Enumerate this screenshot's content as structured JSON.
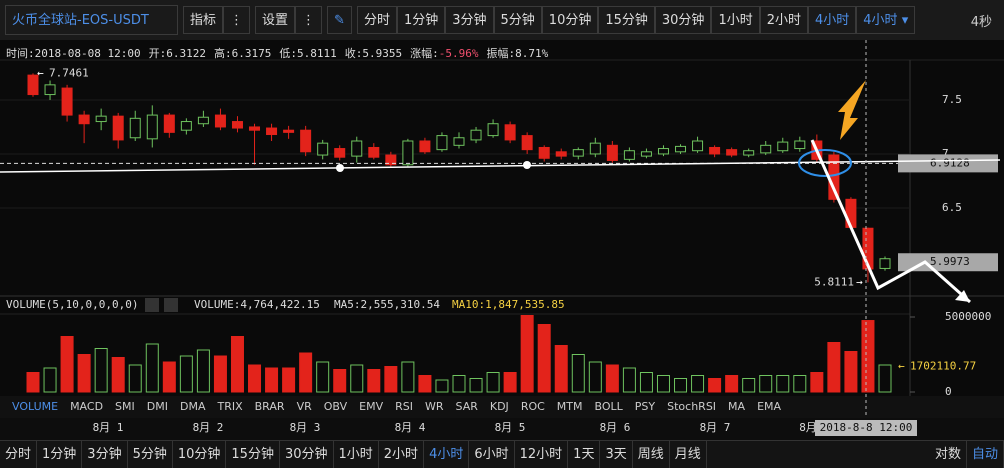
{
  "toolbar": {
    "symbol": "火币全球站-EOS-USDT",
    "indicator": "指标",
    "settings": "设置",
    "intervals": [
      "分时",
      "1分钟",
      "3分钟",
      "5分钟",
      "10分钟",
      "15分钟",
      "30分钟",
      "1小时",
      "2小时",
      "4小时"
    ],
    "interval_select": "4小时",
    "refresh": "4秒"
  },
  "info_bar": {
    "time_label": "时间:",
    "time": "2018-08-08 12:00",
    "open_label": "开:",
    "high_label": "高:",
    "low_label": "低:",
    "close_label": "收:",
    "change_label": "涨幅:",
    "change": "-5.96%",
    "amplitude_label": "振幅:",
    "amplitude": "8.71%"
  },
  "chart_data": {
    "type": "candlestick",
    "candles": [
      [
        7.73,
        7.7461,
        7.53,
        7.55
      ],
      [
        7.55,
        7.68,
        7.5,
        7.64
      ],
      [
        7.61,
        7.64,
        7.3,
        7.36
      ],
      [
        7.36,
        7.4,
        7.1,
        7.28
      ],
      [
        7.3,
        7.42,
        7.22,
        7.35
      ],
      [
        7.35,
        7.38,
        7.05,
        7.13
      ],
      [
        7.15,
        7.4,
        7.12,
        7.33
      ],
      [
        7.14,
        7.45,
        7.06,
        7.36
      ],
      [
        7.36,
        7.38,
        7.15,
        7.2
      ],
      [
        7.22,
        7.33,
        7.18,
        7.3
      ],
      [
        7.28,
        7.4,
        7.25,
        7.34
      ],
      [
        7.36,
        7.42,
        7.22,
        7.25
      ],
      [
        7.3,
        7.35,
        7.2,
        7.24
      ],
      [
        7.25,
        7.28,
        6.9,
        7.22
      ],
      [
        7.24,
        7.28,
        7.12,
        7.18
      ],
      [
        7.22,
        7.26,
        7.14,
        7.2
      ],
      [
        7.22,
        7.26,
        6.98,
        7.02
      ],
      [
        6.99,
        7.13,
        6.95,
        7.1
      ],
      [
        7.05,
        7.08,
        6.94,
        6.97
      ],
      [
        6.98,
        7.16,
        6.92,
        7.12
      ],
      [
        7.06,
        7.1,
        6.95,
        6.97
      ],
      [
        6.99,
        7.02,
        6.88,
        6.9
      ],
      [
        6.9,
        7.14,
        6.88,
        7.12
      ],
      [
        7.12,
        7.15,
        7.0,
        7.02
      ],
      [
        7.04,
        7.2,
        7.02,
        7.17
      ],
      [
        7.08,
        7.2,
        7.05,
        7.15
      ],
      [
        7.13,
        7.25,
        7.1,
        7.22
      ],
      [
        7.17,
        7.32,
        7.15,
        7.28
      ],
      [
        7.27,
        7.3,
        7.1,
        7.13
      ],
      [
        7.17,
        7.2,
        7.0,
        7.04
      ],
      [
        7.06,
        7.08,
        6.93,
        6.96
      ],
      [
        7.02,
        7.05,
        6.95,
        6.98
      ],
      [
        6.98,
        7.06,
        6.95,
        7.04
      ],
      [
        7.0,
        7.15,
        6.97,
        7.1
      ],
      [
        7.08,
        7.12,
        6.92,
        6.94
      ],
      [
        6.95,
        7.06,
        6.93,
        7.03
      ],
      [
        6.98,
        7.05,
        6.96,
        7.02
      ],
      [
        7.0,
        7.08,
        6.98,
        7.05
      ],
      [
        7.02,
        7.09,
        7.0,
        7.07
      ],
      [
        7.03,
        7.16,
        7.01,
        7.12
      ],
      [
        7.06,
        7.08,
        6.97,
        7.0
      ],
      [
        7.04,
        7.06,
        6.97,
        6.99
      ],
      [
        6.99,
        7.05,
        6.97,
        7.03
      ],
      [
        7.01,
        7.12,
        6.99,
        7.08
      ],
      [
        7.03,
        7.15,
        7.01,
        7.11
      ],
      [
        7.05,
        7.16,
        7.02,
        7.12
      ],
      [
        7.12,
        7.18,
        6.92,
        6.95
      ],
      [
        6.99,
        7.02,
        6.55,
        6.58
      ],
      [
        6.58,
        6.6,
        6.3,
        6.32
      ],
      [
        6.3122,
        6.3175,
        5.8111,
        5.9355
      ],
      [
        5.94,
        6.05,
        5.92,
        6.03
      ]
    ],
    "ylim": [
      5.694,
      7.87
    ],
    "yticks": [
      6.5,
      7,
      7.5
    ],
    "up_color": "#6fc35f",
    "down_color": "#e3231b",
    "price_markers": [
      6.9128,
      5.9973
    ],
    "x_labels": [
      "8月 1",
      "8月 2",
      "8月 3",
      "8月 4",
      "8月 5",
      "8月 6",
      "8月 7",
      "8月"
    ],
    "crosshair_time": "2018-8-8 12:00",
    "volume": {
      "title": "VOLUME(5,10,0,0,0,0)",
      "stats": [
        "VOLUME:4,764,422.15",
        "MA5:2,555,310.54",
        "MA10:1,847,535.85"
      ],
      "values": [
        1300000,
        1600000,
        3700000,
        2500000,
        2900000,
        2300000,
        1800000,
        3200000,
        2000000,
        2400000,
        2800000,
        2400000,
        3700000,
        1800000,
        1600000,
        1600000,
        2600000,
        2000000,
        1500000,
        1800000,
        1500000,
        1700000,
        2000000,
        1100000,
        800000,
        1100000,
        900000,
        1300000,
        1300000,
        5100000,
        4500000,
        3100000,
        2500000,
        2000000,
        1800000,
        1600000,
        1300000,
        1100000,
        900000,
        1100000,
        900000,
        1100000,
        900000,
        1100000,
        1100000,
        1100000,
        1300000,
        3300000,
        2700000,
        4764422.15,
        1800000
      ],
      "ylim": [
        0,
        6300000
      ],
      "yticks": [
        0,
        5000000
      ],
      "marker": 1702110.77
    }
  },
  "indicator_tabs": [
    "VOLUME",
    "MACD",
    "SMI",
    "DMI",
    "DMA",
    "TRIX",
    "BRAR",
    "VR",
    "OBV",
    "EMV",
    "RSI",
    "WR",
    "SAR",
    "KDJ",
    "ROC",
    "MTM",
    "BOLL",
    "PSY",
    "StochRSI",
    "MA",
    "EMA"
  ],
  "bottom_intervals": [
    "分时",
    "1分钟",
    "3分钟",
    "5分钟",
    "10分钟",
    "15分钟",
    "30分钟",
    "1小时",
    "2小时",
    "4小时",
    "6小时",
    "12小时",
    "1天",
    "3天",
    "周线",
    "月线"
  ],
  "scale_options": [
    "对数",
    "自动"
  ]
}
